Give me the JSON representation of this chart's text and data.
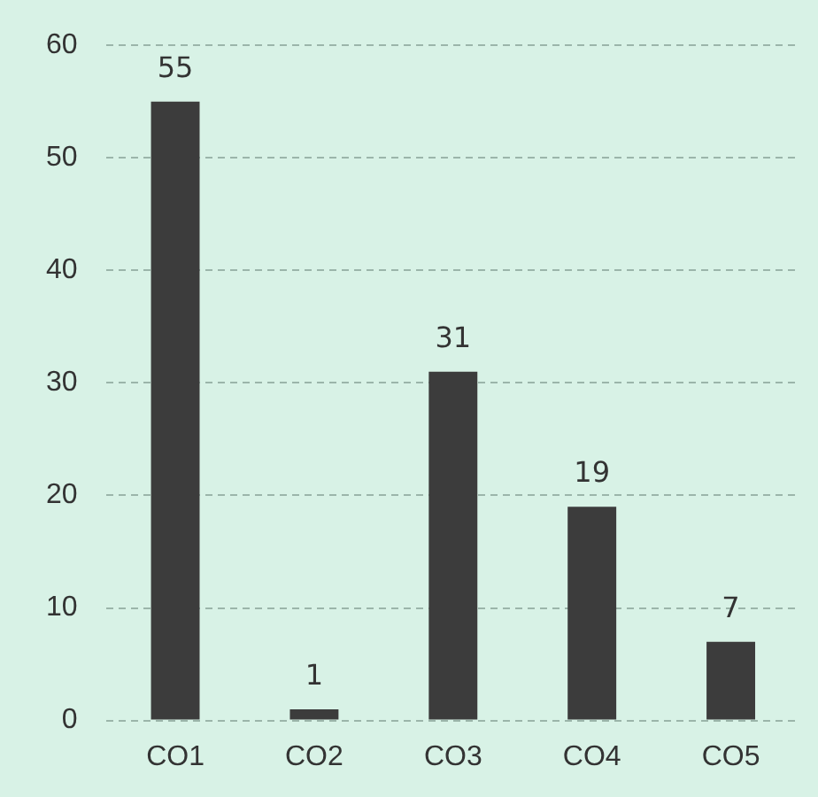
{
  "chart_data": {
    "type": "bar",
    "categories": [
      "CO1",
      "CO2",
      "CO3",
      "CO4",
      "CO5"
    ],
    "values": [
      55,
      1,
      31,
      19,
      7
    ],
    "color": "#3c3c3c",
    "ylim": [
      0,
      60
    ],
    "yticks": [
      0,
      10,
      20,
      30,
      40,
      50,
      60
    ],
    "grid": "y",
    "data_labels": true,
    "legend": false
  }
}
